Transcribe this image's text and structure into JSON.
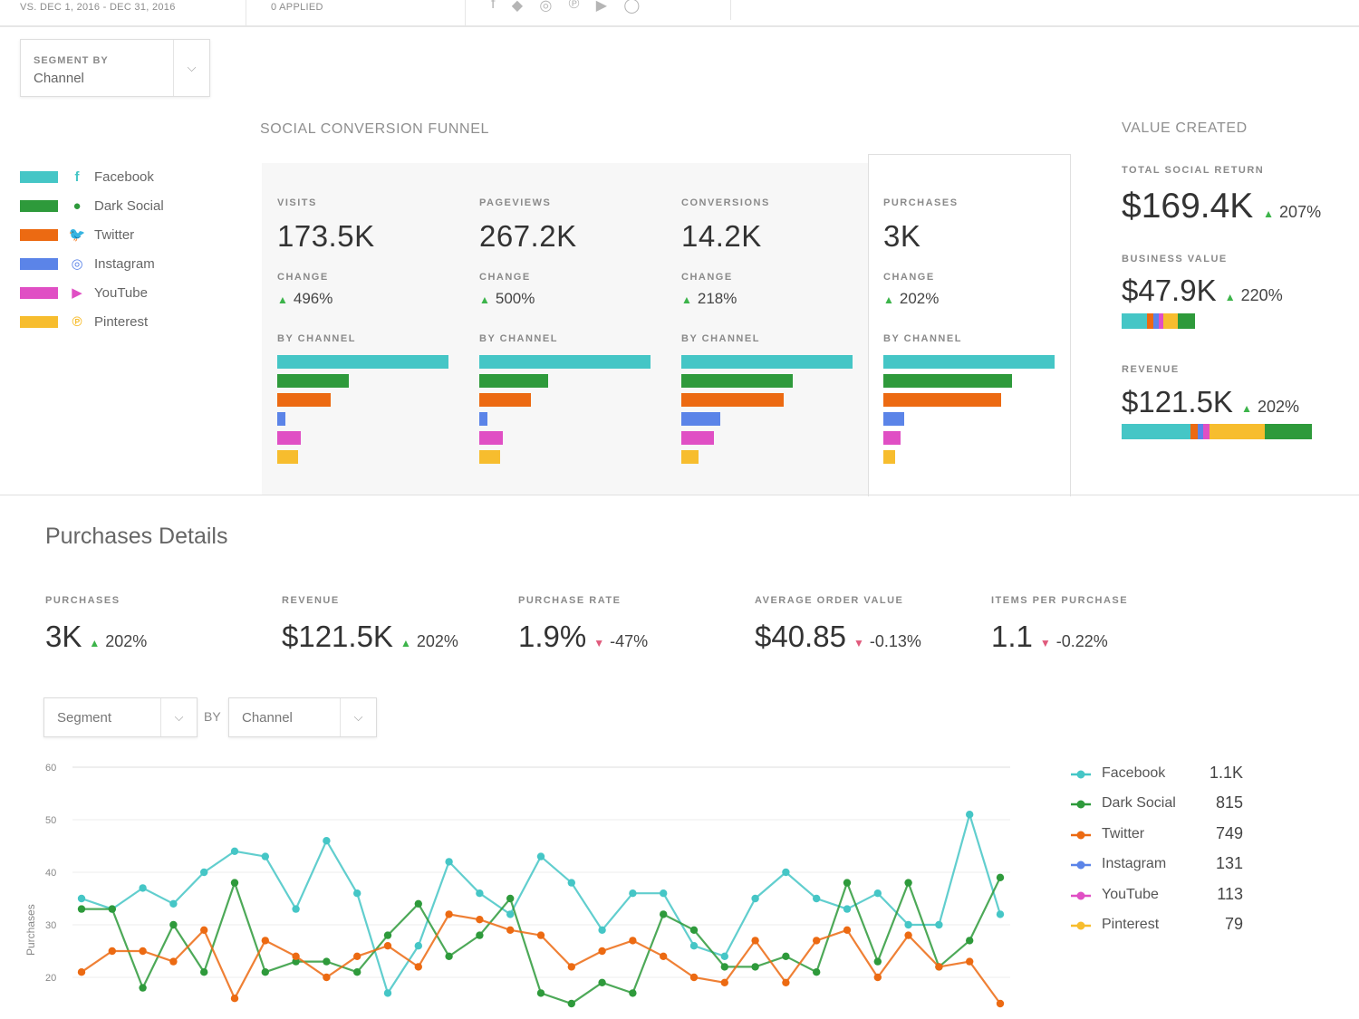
{
  "topbar": {
    "date_range": "VS. DEC 1, 2016 - DEC 31, 2016",
    "filters_applied": "0 APPLIED"
  },
  "segment_by": {
    "caption": "SEGMENT BY",
    "value": "Channel"
  },
  "channels": [
    {
      "name": "Facebook",
      "color": "#45c6c6",
      "icon": "facebook-icon",
      "glyph": "f"
    },
    {
      "name": "Dark Social",
      "color": "#2e9a3b",
      "icon": "chat-bubble-icon",
      "glyph": "●"
    },
    {
      "name": "Twitter",
      "color": "#ec6a12",
      "icon": "twitter-bird-icon",
      "glyph": "🐦"
    },
    {
      "name": "Instagram",
      "color": "#5b84e8",
      "icon": "instagram-icon",
      "glyph": "◎"
    },
    {
      "name": "YouTube",
      "color": "#e04fc4",
      "icon": "youtube-play-icon",
      "glyph": "▶"
    },
    {
      "name": "Pinterest",
      "color": "#f7bd2e",
      "icon": "pinterest-icon",
      "glyph": "℗"
    }
  ],
  "funnel": {
    "title": "SOCIAL CONVERSION FUNNEL",
    "change_caption": "CHANGE",
    "by_channel_caption": "BY CHANNEL",
    "columns": [
      {
        "label": "VISITS",
        "value": "173.5K",
        "change": "496%",
        "channel_shares": [
          1.0,
          0.42,
          0.31,
          0.05,
          0.14,
          0.12
        ]
      },
      {
        "label": "PAGEVIEWS",
        "value": "267.2K",
        "change": "500%",
        "channel_shares": [
          1.0,
          0.4,
          0.3,
          0.05,
          0.14,
          0.12
        ]
      },
      {
        "label": "CONVERSIONS",
        "value": "14.2K",
        "change": "218%",
        "channel_shares": [
          1.0,
          0.65,
          0.6,
          0.23,
          0.19,
          0.1
        ]
      },
      {
        "label": "PURCHASES",
        "value": "3K",
        "change": "202%",
        "channel_shares": [
          1.0,
          0.75,
          0.69,
          0.12,
          0.1,
          0.07
        ]
      }
    ]
  },
  "value_created": {
    "title": "VALUE CREATED",
    "total": {
      "label": "TOTAL SOCIAL RETURN",
      "value": "$169.4K",
      "change": "207%"
    },
    "business": {
      "label": "BUSINESS VALUE",
      "value": "$47.9K",
      "change": "220%",
      "shares": [
        0.35,
        0.23,
        0.08,
        0.07,
        0.07,
        0.2
      ]
    },
    "revenue": {
      "label": "REVENUE",
      "value": "$121.5K",
      "change": "202%",
      "shares": [
        0.36,
        0.25,
        0.04,
        0.03,
        0.03,
        0.29
      ]
    }
  },
  "details": {
    "title": "Purchases Details",
    "metrics": [
      {
        "label": "PURCHASES",
        "value": "3K",
        "change": "202%",
        "dir": "up"
      },
      {
        "label": "REVENUE",
        "value": "$121.5K",
        "change": "202%",
        "dir": "up"
      },
      {
        "label": "PURCHASE RATE",
        "value": "1.9%",
        "change": "-47%",
        "dir": "down"
      },
      {
        "label": "AVERAGE ORDER VALUE",
        "value": "$40.85",
        "change": "-0.13%",
        "dir": "down"
      },
      {
        "label": "ITEMS PER PURCHASE",
        "value": "1.1",
        "change": "-0.22%",
        "dir": "down"
      }
    ],
    "segment_select": "Segment",
    "by_label": "BY",
    "channel_select": "Channel"
  },
  "chart_data": {
    "type": "line",
    "title": "",
    "xlabel": "",
    "ylabel": "Purchases",
    "ylim": [
      18,
      60
    ],
    "yticks": [
      20,
      30,
      40,
      50,
      60
    ],
    "grid": true,
    "legend_position": "right",
    "series": [
      {
        "name": "Facebook",
        "total": "1.1K",
        "color": "#45c6c6",
        "values": [
          35,
          33,
          37,
          34,
          40,
          44,
          43,
          33,
          46,
          36,
          17,
          26,
          42,
          36,
          32,
          43,
          38,
          29,
          36,
          36,
          26,
          24,
          35,
          40,
          35,
          33,
          36,
          30,
          30,
          51,
          32
        ]
      },
      {
        "name": "Dark Social",
        "total": "815",
        "color": "#2e9a3b",
        "values": [
          33,
          33,
          18,
          30,
          21,
          38,
          21,
          23,
          23,
          21,
          28,
          34,
          24,
          28,
          35,
          17,
          15,
          19,
          17,
          32,
          29,
          22,
          22,
          24,
          21,
          38,
          23,
          38,
          22,
          27,
          39
        ]
      },
      {
        "name": "Twitter",
        "total": "749",
        "color": "#ec6a12",
        "values": [
          21,
          25,
          25,
          23,
          29,
          16,
          27,
          24,
          20,
          24,
          26,
          22,
          32,
          31,
          29,
          28,
          22,
          25,
          27,
          24,
          20,
          19,
          27,
          19,
          27,
          29,
          20,
          28,
          22,
          23,
          15
        ]
      },
      {
        "name": "Instagram",
        "total": "131",
        "color": "#5b84e8",
        "values": []
      },
      {
        "name": "YouTube",
        "total": "113",
        "color": "#e04fc4",
        "values": []
      },
      {
        "name": "Pinterest",
        "total": "79",
        "color": "#f7bd2e",
        "values": []
      }
    ]
  }
}
